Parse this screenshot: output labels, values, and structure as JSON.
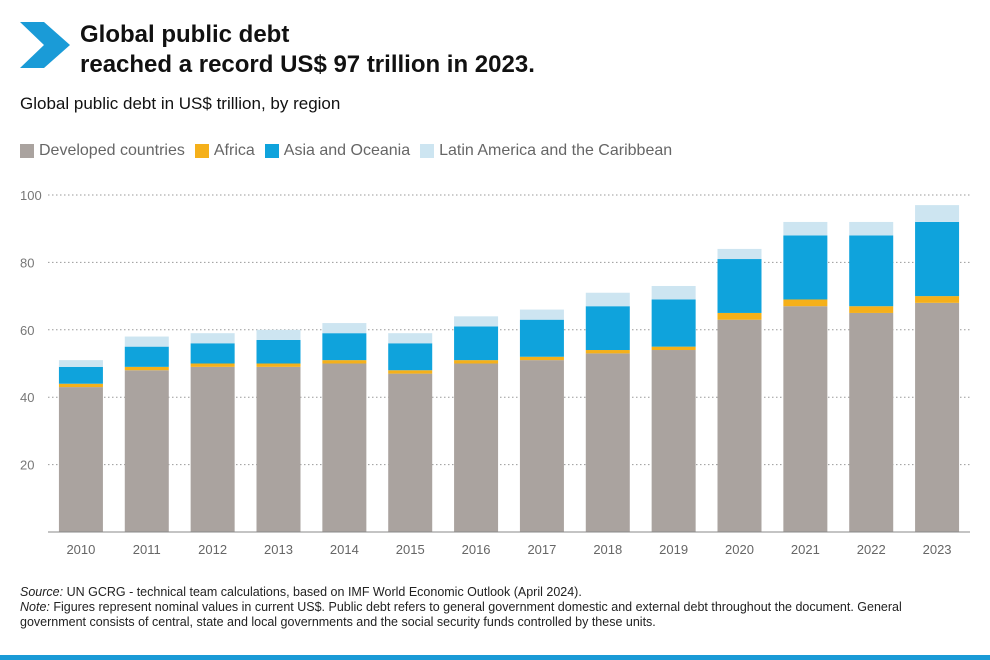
{
  "header": {
    "title_line1": "Global public debt",
    "title_line2": "reached a record US$ 97 trillion in 2023.",
    "subtitle": "Global public debt in US$ trillion, by region"
  },
  "colors": {
    "brand_chevron": "#1a9bd7",
    "developed": "#aaa39f",
    "africa": "#f5b01a",
    "asia": "#0fa3dc",
    "latam": "#cde5f1"
  },
  "legend": [
    {
      "label": "Developed countries",
      "color": "#aaa39f"
    },
    {
      "label": "Africa",
      "color": "#f5b01a"
    },
    {
      "label": "Asia and Oceania",
      "color": "#0fa3dc"
    },
    {
      "label": "Latin America and the Caribbean",
      "color": "#cde5f1"
    }
  ],
  "chart_data": {
    "type": "bar",
    "stacked": true,
    "title": "Global public debt in US$ trillion, by region",
    "xlabel": "",
    "ylabel": "",
    "ylim": [
      0,
      100
    ],
    "yticks": [
      20,
      40,
      60,
      80,
      100
    ],
    "grid": true,
    "legend_position": "top-left",
    "categories": [
      "2010",
      "2011",
      "2012",
      "2013",
      "2014",
      "2015",
      "2016",
      "2017",
      "2018",
      "2019",
      "2020",
      "2021",
      "2022",
      "2023"
    ],
    "series": [
      {
        "name": "Developed countries",
        "color": "#aaa39f",
        "values": [
          43,
          48,
          49,
          49,
          50,
          47,
          50,
          51,
          53,
          54,
          63,
          67,
          65,
          68
        ]
      },
      {
        "name": "Africa",
        "color": "#f5b01a",
        "values": [
          1,
          1,
          1,
          1,
          1,
          1,
          1,
          1,
          1,
          1,
          2,
          2,
          2,
          2
        ]
      },
      {
        "name": "Asia and Oceania",
        "color": "#0fa3dc",
        "values": [
          5,
          6,
          6,
          7,
          8,
          8,
          10,
          11,
          13,
          14,
          16,
          19,
          21,
          22
        ]
      },
      {
        "name": "Latin America and the Caribbean",
        "color": "#cde5f1",
        "values": [
          2,
          3,
          3,
          3,
          3,
          3,
          3,
          3,
          4,
          4,
          3,
          4,
          4,
          5
        ]
      }
    ]
  },
  "footer": {
    "source_label": "Source:",
    "source_text": " UN GCRG - technical team calculations, based on IMF World Economic Outlook (April 2024).",
    "note_label": "Note:",
    "note_text": " Figures represent nominal values in current US$. Public debt refers to general government domestic and external debt throughout the document. General government consists of central, state and local governments and the social security funds controlled by these units."
  }
}
